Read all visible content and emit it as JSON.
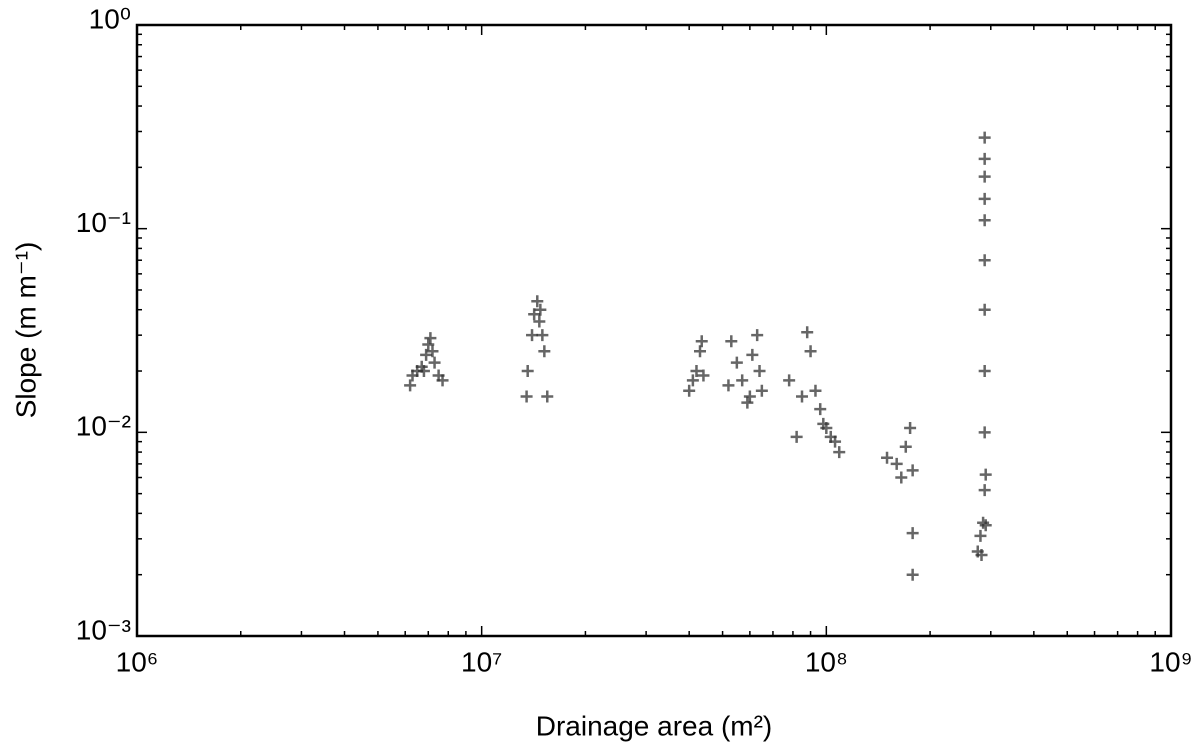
{
  "chart_data": {
    "type": "scatter",
    "x_label": "Drainage area (m²)",
    "y_label": "Slope (m m⁻¹)",
    "xscale": "log",
    "yscale": "log",
    "xlim": [
      1000000,
      1000000000
    ],
    "ylim": [
      0.001,
      1
    ],
    "xticks": [
      {
        "value": 1000000,
        "label": "10⁶"
      },
      {
        "value": 10000000,
        "label": "10⁷"
      },
      {
        "value": 100000000,
        "label": "10⁸"
      },
      {
        "value": 1000000000,
        "label": "10⁹"
      }
    ],
    "yticks": [
      {
        "value": 0.001,
        "label": "10⁻³"
      },
      {
        "value": 0.01,
        "label": "10⁻²"
      },
      {
        "value": 0.1,
        "label": "10⁻¹"
      },
      {
        "value": 1,
        "label": "10⁰"
      }
    ],
    "minor_ticks": true,
    "color": "#333333",
    "marker": "plus",
    "x": [
      6200000,
      6300000,
      6500000,
      6700000,
      6800000,
      6900000,
      7000000,
      7100000,
      7200000,
      7300000,
      7500000,
      7700000,
      13500000,
      13600000,
      14000000,
      14200000,
      14500000,
      14700000,
      14800000,
      15000000,
      15200000,
      15500000,
      40000000,
      41000000,
      42000000,
      43000000,
      43500000,
      44000000,
      52000000,
      53000000,
      55000000,
      57000000,
      59000000,
      60000000,
      61000000,
      63000000,
      64000000,
      65000000,
      78000000,
      82000000,
      85000000,
      88000000,
      90000000,
      93000000,
      96000000,
      98000000,
      100000000,
      103000000,
      106000000,
      109000000,
      150000000,
      160000000,
      165000000,
      170000000,
      175000000,
      178000000,
      178000000,
      178000000,
      275000000,
      280000000,
      282000000,
      285000000,
      288000000,
      290000000,
      290000000,
      288000000,
      288000000,
      288000000,
      288000000,
      288000000,
      288000000,
      288000000,
      288000000,
      288000000
    ],
    "values": [
      0.017,
      0.019,
      0.02,
      0.021,
      0.02,
      0.024,
      0.027,
      0.029,
      0.025,
      0.022,
      0.019,
      0.018,
      0.015,
      0.02,
      0.03,
      0.038,
      0.044,
      0.035,
      0.04,
      0.03,
      0.025,
      0.015,
      0.016,
      0.018,
      0.02,
      0.025,
      0.028,
      0.019,
      0.017,
      0.028,
      0.022,
      0.018,
      0.014,
      0.015,
      0.024,
      0.03,
      0.02,
      0.016,
      0.018,
      0.0095,
      0.015,
      0.031,
      0.025,
      0.016,
      0.013,
      0.011,
      0.0105,
      0.0095,
      0.009,
      0.008,
      0.0075,
      0.007,
      0.006,
      0.0085,
      0.0105,
      0.0065,
      0.0032,
      0.002,
      0.0026,
      0.0031,
      0.0025,
      0.0036,
      0.0052,
      0.0062,
      0.0035,
      0.01,
      0.02,
      0.04,
      0.07,
      0.11,
      0.14,
      0.18,
      0.22,
      0.28
    ]
  }
}
